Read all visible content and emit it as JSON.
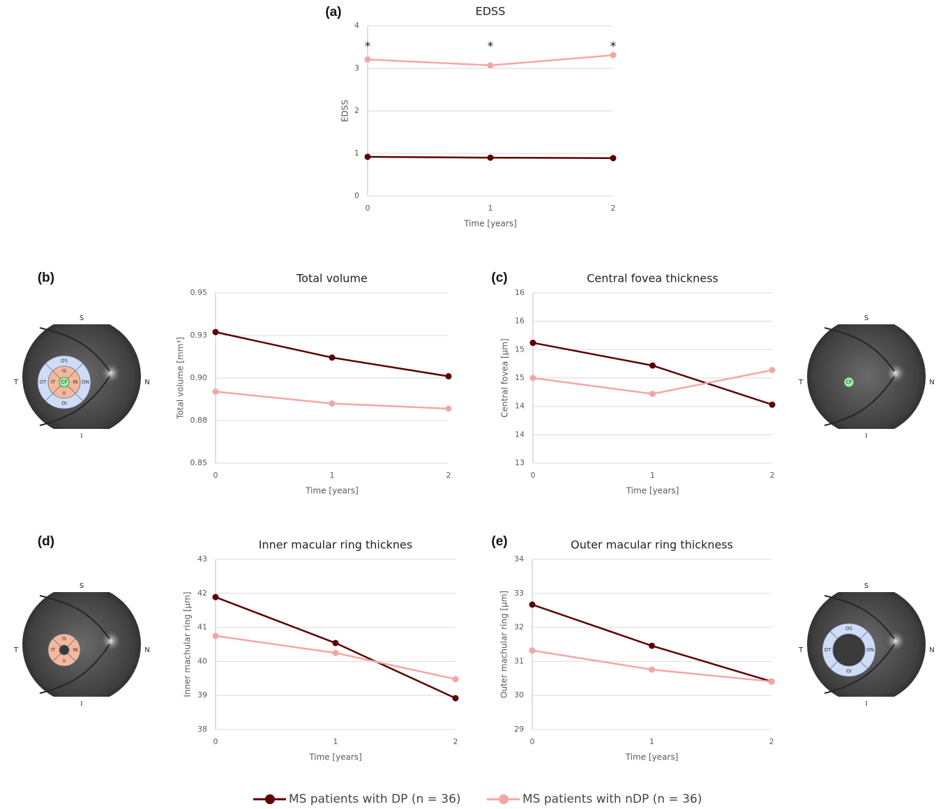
{
  "legend": {
    "series": [
      {
        "name": "MS patients with DP (n = 36)",
        "color": "#5c0000"
      },
      {
        "name": "MS patients with nDP (n = 36)",
        "color": "#f4a6a6"
      }
    ]
  },
  "chart_data": [
    {
      "type": "line",
      "panel_label": "(a)",
      "title": "EDSS",
      "y_label": "EDSS",
      "x_label": "Time [years]",
      "x": [
        0,
        1,
        2
      ],
      "xlim": [
        0,
        2
      ],
      "xticks": [
        0,
        1,
        2
      ],
      "ylim": [
        0,
        4
      ],
      "yticks": [
        0,
        1,
        2,
        3,
        4
      ],
      "grid": true,
      "series": [
        {
          "values": [
            0.92,
            0.9,
            0.89
          ]
        },
        {
          "values": [
            3.21,
            3.07,
            3.31
          ]
        }
      ],
      "annotations": [
        {
          "x": 0,
          "text": "*"
        },
        {
          "x": 1,
          "text": "*"
        },
        {
          "x": 2,
          "text": "*"
        }
      ]
    },
    {
      "type": "line",
      "panel_label": "(b)",
      "title": "Total volume",
      "y_label": "Total volume [mm³]",
      "x_label": "Time [years]",
      "x": [
        0,
        1,
        2
      ],
      "xlim": [
        0,
        2
      ],
      "xticks": [
        0,
        1,
        2
      ],
      "ylim": [
        0.85,
        0.95
      ],
      "yticks": [
        0.85,
        {
          "value": 0.875,
          "label": "0.88"
        },
        {
          "value": 0.9,
          "label": "0.90"
        },
        {
          "value": 0.925,
          "label": "0.93"
        },
        0.95
      ],
      "grid": true,
      "series": [
        {
          "values": [
            0.927,
            0.912,
            0.901
          ]
        },
        {
          "values": [
            0.892,
            0.885,
            0.882
          ]
        }
      ]
    },
    {
      "type": "line",
      "panel_label": "(c)",
      "title": "Central fovea thickness",
      "y_label": "Central fovea [µm]",
      "x_label": "Time [years]",
      "x": [
        0,
        1,
        2
      ],
      "xlim": [
        0,
        2
      ],
      "xticks": [
        0,
        1,
        2
      ],
      "ylim": [
        13,
        16
      ],
      "yticks": [
        13,
        {
          "value": 13.5,
          "label": "14"
        },
        14,
        {
          "value": 14.5,
          "label": "15"
        },
        15,
        {
          "value": 15.5,
          "label": "16"
        },
        16
      ],
      "grid": true,
      "series": [
        {
          "values": [
            15.12,
            14.72,
            14.03
          ]
        },
        {
          "values": [
            14.5,
            14.22,
            14.64
          ]
        }
      ]
    },
    {
      "type": "line",
      "panel_label": "(d)",
      "title": "Inner macular ring thicknes",
      "y_label": "Inner machular ring [µm]",
      "x_label": "Time [years]",
      "x": [
        0,
        1,
        2
      ],
      "xlim": [
        0,
        2
      ],
      "xticks": [
        0,
        1,
        2
      ],
      "ylim": [
        38,
        43
      ],
      "yticks": [
        38,
        39,
        40,
        41,
        42,
        43
      ],
      "grid": true,
      "series": [
        {
          "values": [
            41.89,
            40.54,
            38.92
          ]
        },
        {
          "values": [
            40.75,
            40.25,
            39.48
          ]
        }
      ]
    },
    {
      "type": "line",
      "panel_label": "(e)",
      "title": "Outer macular ring thickness",
      "y_label": "Outer machular ring [µm]",
      "x_label": "Time [years]",
      "x": [
        0,
        1,
        2
      ],
      "xlim": [
        0,
        2
      ],
      "xticks": [
        0,
        1,
        2
      ],
      "ylim": [
        29,
        34
      ],
      "yticks": [
        29,
        30,
        31,
        32,
        33,
        34
      ],
      "grid": true,
      "series": [
        {
          "values": [
            32.67,
            31.46,
            30.41
          ]
        },
        {
          "values": [
            31.32,
            30.76,
            30.41
          ]
        }
      ]
    }
  ],
  "diagrams": [
    {
      "compass": [
        "S",
        "T",
        "N",
        "I"
      ],
      "outer": [
        "OS",
        "OT",
        "ON",
        "OI"
      ],
      "inner": [
        "IS",
        "IT",
        "IN",
        "II"
      ],
      "center": "CF"
    },
    {
      "compass": [
        "S",
        "T",
        "N",
        "I"
      ],
      "center": "CF"
    },
    {
      "compass": [
        "S",
        "T",
        "N",
        "I"
      ],
      "inner": [
        "IS",
        "IT",
        "IN",
        "II"
      ]
    },
    {
      "compass": [
        "S",
        "T",
        "N",
        "I"
      ],
      "outer": [
        "OS",
        "OT",
        "ON",
        "OI"
      ]
    }
  ]
}
